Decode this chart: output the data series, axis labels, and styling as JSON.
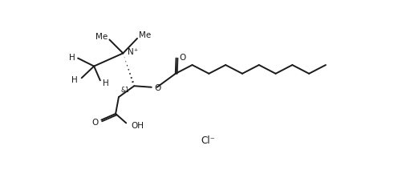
{
  "background_color": "#ffffff",
  "line_color": "#1a1a1a",
  "line_width": 1.4,
  "font_size": 7.5,
  "figsize": [
    4.96,
    2.28
  ],
  "dpi": 100,
  "cl_text": "Cl⁻",
  "stereo_label": "&1",
  "n_plus": "N⁺",
  "oh_label": "OH",
  "o_label": "O"
}
